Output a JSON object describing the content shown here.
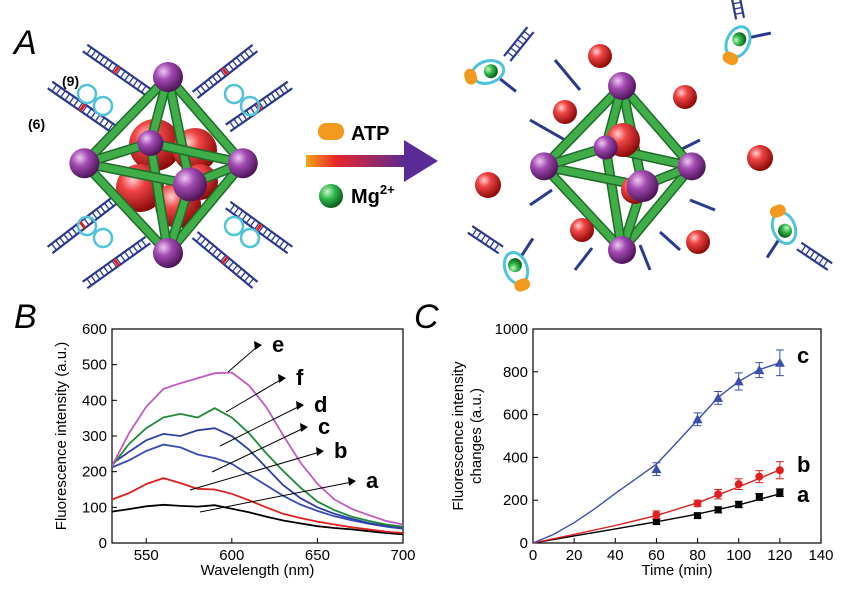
{
  "panel_labels": {
    "a": "A",
    "b": "B",
    "c": "C"
  },
  "schematic": {
    "strand_labels": [
      "(9)",
      "(6)"
    ],
    "legend": {
      "atp": "ATP",
      "mg": "Mg",
      "mg_sup": "2+"
    },
    "colors": {
      "dna": "#2b3a8f",
      "loop": "#4fc3d9",
      "rod": "#3fae49",
      "vertex": "#8e3a9c",
      "cargo": "#d62020",
      "atp": "#f39a1e",
      "mg": "#1f9e3a"
    }
  },
  "chart_data": [
    {
      "id": "B",
      "type": "line",
      "xlabel": "Wavelength (nm)",
      "ylabel": "Fluorescence intensity (a.u.)",
      "xlim": [
        530,
        700
      ],
      "ylim": [
        0,
        600
      ],
      "xticks": [
        550,
        600,
        650,
        700
      ],
      "yticks": [
        0,
        100,
        200,
        300,
        400,
        500,
        600
      ],
      "series": [
        {
          "label": "a",
          "color": "#000000",
          "x": [
            530,
            540,
            550,
            560,
            570,
            580,
            590,
            600,
            610,
            620,
            630,
            640,
            650,
            660,
            670,
            680,
            690,
            700
          ],
          "y": [
            88,
            95,
            103,
            107,
            104,
            102,
            106,
            96,
            86,
            74,
            63,
            55,
            47,
            42,
            38,
            33,
            28,
            24
          ]
        },
        {
          "label": "b",
          "color": "#e02020",
          "x": [
            530,
            540,
            550,
            560,
            570,
            580,
            590,
            600,
            610,
            620,
            630,
            640,
            650,
            660,
            670,
            680,
            690,
            700
          ],
          "y": [
            122,
            140,
            165,
            182,
            168,
            152,
            150,
            138,
            120,
            100,
            82,
            70,
            60,
            52,
            44,
            38,
            32,
            28
          ]
        },
        {
          "label": "c",
          "color": "#3a4bb8",
          "x": [
            530,
            540,
            550,
            560,
            570,
            580,
            590,
            600,
            610,
            620,
            630,
            640,
            650,
            660,
            670,
            680,
            690,
            700
          ],
          "y": [
            212,
            232,
            258,
            276,
            268,
            248,
            238,
            222,
            192,
            162,
            132,
            108,
            90,
            75,
            64,
            54,
            46,
            40
          ]
        },
        {
          "label": "d",
          "color": "#2f3fa8",
          "x": [
            530,
            540,
            550,
            560,
            570,
            580,
            590,
            600,
            610,
            620,
            630,
            640,
            650,
            660,
            670,
            680,
            690,
            700
          ],
          "y": [
            222,
            256,
            288,
            306,
            300,
            316,
            322,
            300,
            262,
            212,
            162,
            126,
            100,
            82,
            68,
            56,
            48,
            42
          ]
        },
        {
          "label": "f",
          "color": "#1f8a3a",
          "x": [
            530,
            540,
            550,
            560,
            570,
            580,
            590,
            600,
            610,
            620,
            630,
            640,
            650,
            660,
            670,
            680,
            690,
            700
          ],
          "y": [
            216,
            278,
            322,
            352,
            362,
            352,
            378,
            352,
            308,
            252,
            202,
            156,
            116,
            92,
            74,
            62,
            52,
            46
          ]
        },
        {
          "label": "e",
          "color": "#c25ac2",
          "x": [
            530,
            540,
            550,
            560,
            570,
            580,
            590,
            600,
            610,
            620,
            630,
            640,
            650,
            660,
            670,
            680,
            690,
            700
          ],
          "y": [
            216,
            308,
            382,
            432,
            448,
            462,
            476,
            478,
            442,
            382,
            302,
            226,
            166,
            122,
            96,
            78,
            62,
            52
          ]
        }
      ]
    },
    {
      "id": "C",
      "type": "scatter",
      "xlabel": "Time (min)",
      "ylabel": "Fluorescence intensity changes (a.u.)",
      "xlim": [
        0,
        140
      ],
      "ylim": [
        0,
        1000
      ],
      "xticks": [
        0,
        20,
        40,
        60,
        80,
        100,
        120,
        140
      ],
      "yticks": [
        0,
        200,
        400,
        600,
        800,
        1000
      ],
      "series": [
        {
          "label": "a",
          "color": "#000000",
          "marker": "square",
          "x": [
            60,
            80,
            90,
            100,
            110,
            120
          ],
          "y": [
            100,
            128,
            155,
            180,
            215,
            235
          ],
          "err": [
            12,
            12,
            14,
            15,
            16,
            18
          ],
          "fit_x": [
            0,
            20,
            40,
            60,
            80,
            100,
            120
          ],
          "fit_y": [
            0,
            33,
            66,
            99,
            135,
            178,
            230
          ]
        },
        {
          "label": "b",
          "color": "#e02020",
          "marker": "circle",
          "x": [
            60,
            80,
            90,
            100,
            110,
            120
          ],
          "y": [
            132,
            185,
            228,
            275,
            310,
            340
          ],
          "err": [
            18,
            15,
            22,
            25,
            28,
            40
          ],
          "fit_x": [
            0,
            20,
            40,
            60,
            80,
            100,
            120
          ],
          "fit_y": [
            0,
            40,
            82,
            128,
            188,
            262,
            342
          ]
        },
        {
          "label": "c",
          "color": "#3a4fb0",
          "marker": "triangle",
          "x": [
            60,
            80,
            90,
            100,
            110,
            120
          ],
          "y": [
            345,
            578,
            678,
            755,
            808,
            842
          ],
          "err": [
            30,
            30,
            30,
            40,
            35,
            60
          ],
          "fit_x": [
            0,
            10,
            20,
            30,
            40,
            50,
            60,
            70,
            80,
            90,
            100,
            110,
            120
          ],
          "fit_y": [
            0,
            40,
            95,
            160,
            232,
            300,
            368,
            470,
            575,
            680,
            755,
            810,
            842
          ]
        }
      ]
    }
  ]
}
